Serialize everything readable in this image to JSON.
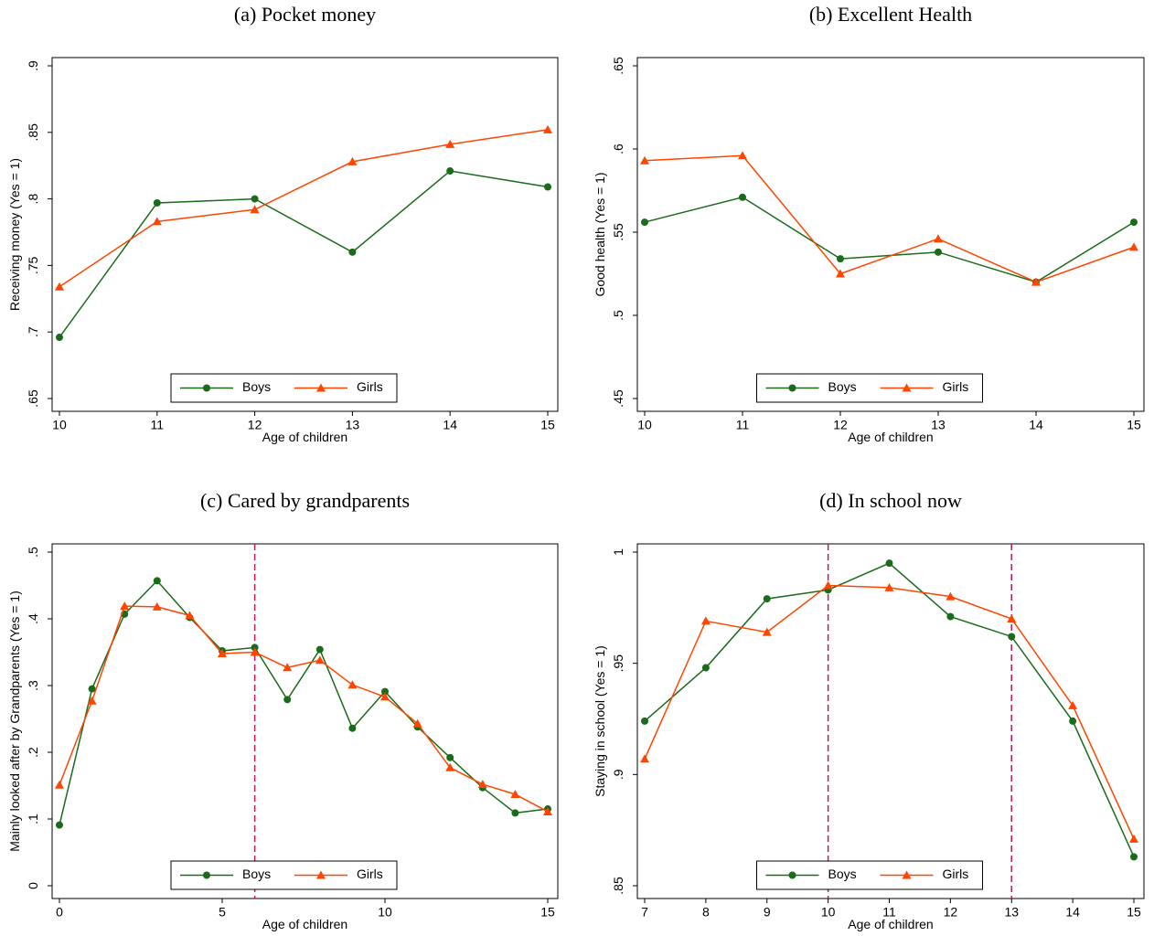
{
  "chart_data": [
    {
      "type": "line",
      "title": "(a) Pocket money",
      "xlabel": "Age of children",
      "ylabel": "Receiving money (Yes = 1)",
      "x": [
        10,
        11,
        12,
        13,
        14,
        15
      ],
      "xlim": [
        10,
        15
      ],
      "xticks": [
        10,
        11,
        12,
        13,
        14,
        15
      ],
      "ylim": [
        0.65,
        0.9
      ],
      "yticks": [
        {
          "value": 0.65,
          "label": ".65"
        },
        {
          "value": 0.7,
          "label": ".7"
        },
        {
          "value": 0.75,
          "label": ".75"
        },
        {
          "value": 0.8,
          "label": ".8"
        },
        {
          "value": 0.85,
          "label": ".85"
        },
        {
          "value": 0.9,
          "label": ".9"
        }
      ],
      "legend": "bottom",
      "series": [
        {
          "name": "Boys",
          "color": "#1a6b1a",
          "marker": "circle",
          "values": [
            0.696,
            0.797,
            0.8,
            0.76,
            0.821,
            0.809
          ]
        },
        {
          "name": "Girls",
          "color": "#ff4500",
          "marker": "triangle",
          "values": [
            0.734,
            0.783,
            0.792,
            0.828,
            0.841,
            0.852
          ]
        }
      ]
    },
    {
      "type": "line",
      "title": "(b) Excellent Health",
      "xlabel": "Age of children",
      "ylabel": "Good health (Yes = 1)",
      "x": [
        10,
        11,
        12,
        13,
        14,
        15
      ],
      "xlim": [
        10,
        15
      ],
      "xticks": [
        10,
        11,
        12,
        13,
        14,
        15
      ],
      "ylim": [
        0.45,
        0.65
      ],
      "yticks": [
        {
          "value": 0.45,
          "label": ".45"
        },
        {
          "value": 0.5,
          "label": ".5"
        },
        {
          "value": 0.55,
          "label": ".55"
        },
        {
          "value": 0.6,
          "label": ".6"
        },
        {
          "value": 0.65,
          "label": ".65"
        }
      ],
      "legend": "bottom",
      "series": [
        {
          "name": "Boys",
          "color": "#1a6b1a",
          "marker": "circle",
          "values": [
            0.556,
            0.571,
            0.534,
            0.538,
            0.52,
            0.556
          ]
        },
        {
          "name": "Girls",
          "color": "#ff4500",
          "marker": "triangle",
          "values": [
            0.593,
            0.596,
            0.525,
            0.546,
            0.52,
            0.541
          ]
        }
      ]
    },
    {
      "type": "line",
      "title": "(c) Cared by grandparents",
      "xlabel": "Age of children",
      "ylabel": "Mainly looked after by Grandparents (Yes = 1)",
      "x": [
        0,
        1,
        2,
        3,
        4,
        5,
        6,
        7,
        8,
        9,
        10,
        11,
        12,
        13,
        14,
        15
      ],
      "xlim": [
        0,
        15
      ],
      "xticks": [
        0,
        5,
        10,
        15
      ],
      "ylim": [
        0,
        0.5
      ],
      "yticks": [
        0,
        {
          "value": 0.1,
          "label": ".1"
        },
        {
          "value": 0.2,
          "label": ".2"
        },
        {
          "value": 0.3,
          "label": ".3"
        },
        {
          "value": 0.4,
          "label": ".4"
        },
        {
          "value": 0.5,
          "label": ".5"
        }
      ],
      "vlines": [
        6
      ],
      "vline_color": "#c0185a",
      "legend": "bottom",
      "series": [
        {
          "name": "Boys",
          "color": "#1a6b1a",
          "marker": "circle",
          "values": [
            0.091,
            0.295,
            0.407,
            0.457,
            0.402,
            0.352,
            0.357,
            0.279,
            0.354,
            0.236,
            0.291,
            0.238,
            0.192,
            0.147,
            0.109,
            0.115
          ]
        },
        {
          "name": "Girls",
          "color": "#ff4500",
          "marker": "triangle",
          "values": [
            0.151,
            0.277,
            0.419,
            0.418,
            0.405,
            0.348,
            0.35,
            0.327,
            0.338,
            0.301,
            0.283,
            0.243,
            0.177,
            0.152,
            0.137,
            0.111
          ]
        }
      ]
    },
    {
      "type": "line",
      "title": "(d) In school now",
      "xlabel": "Age of children",
      "ylabel": "Staying in school (Yes = 1)",
      "x": [
        7,
        8,
        9,
        10,
        11,
        12,
        13,
        14,
        15
      ],
      "xlim": [
        7,
        15
      ],
      "xticks": [
        7,
        8,
        9,
        10,
        11,
        12,
        13,
        14,
        15
      ],
      "ylim": [
        0.85,
        1
      ],
      "yticks": [
        {
          "value": 0.85,
          "label": ".85"
        },
        {
          "value": 0.9,
          "label": ".9"
        },
        {
          "value": 0.95,
          "label": ".95"
        },
        1
      ],
      "vlines": [
        10,
        13
      ],
      "vline_color": "#c0185a",
      "legend": "bottom",
      "series": [
        {
          "name": "Boys",
          "color": "#1a6b1a",
          "marker": "circle",
          "values": [
            0.924,
            0.948,
            0.979,
            0.983,
            0.995,
            0.971,
            0.962,
            0.924,
            0.863
          ]
        },
        {
          "name": "Girls",
          "color": "#ff4500",
          "marker": "triangle",
          "values": [
            0.907,
            0.969,
            0.964,
            0.985,
            0.984,
            0.98,
            0.97,
            0.931,
            0.871
          ]
        }
      ]
    }
  ]
}
